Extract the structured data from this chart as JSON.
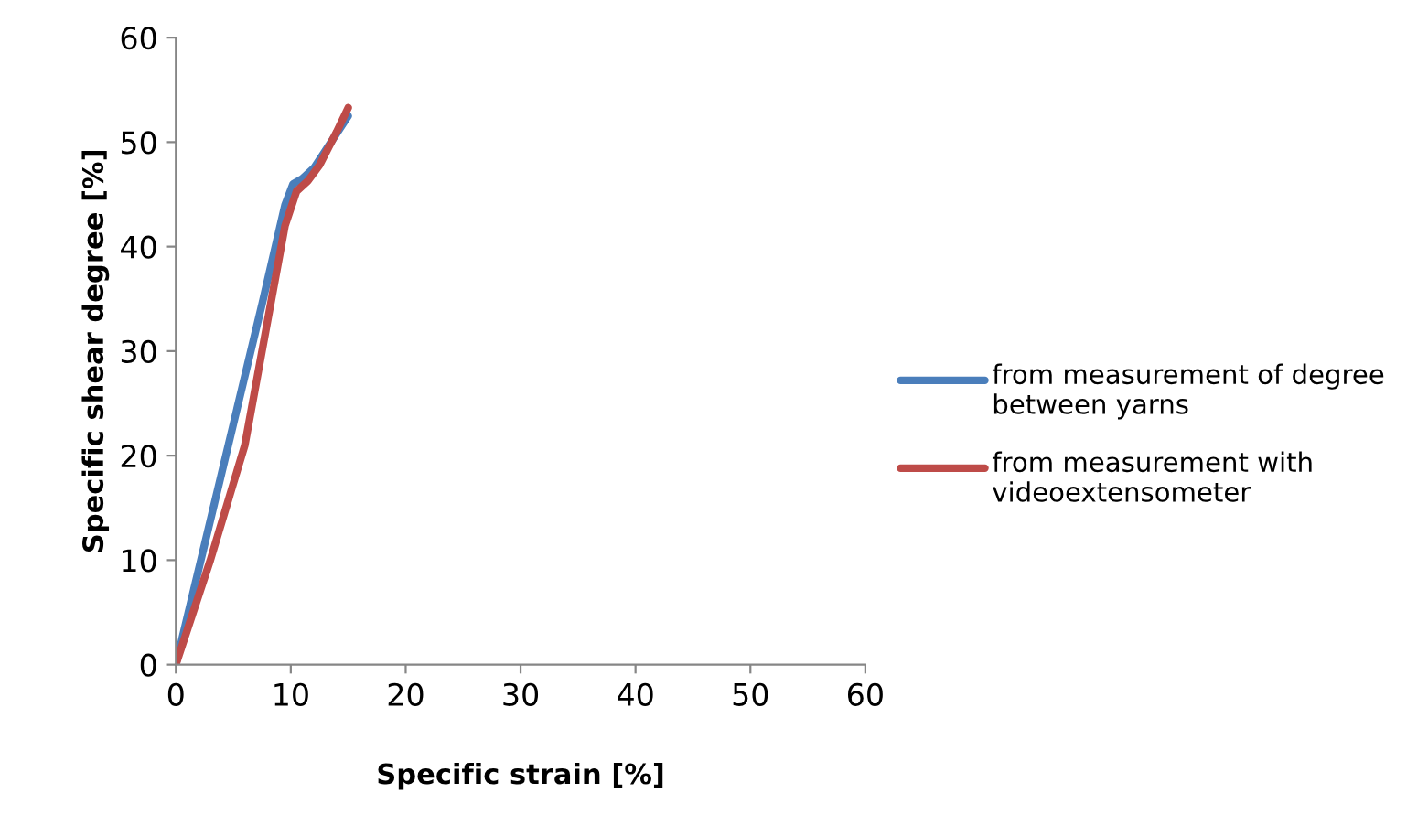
{
  "chart_data": {
    "type": "line",
    "xlabel": "Specific strain [%]",
    "ylabel": "Specific shear degree [%]",
    "xlim": [
      0,
      60
    ],
    "ylim": [
      0,
      60
    ],
    "xticks": [
      0,
      10,
      20,
      30,
      40,
      50,
      60
    ],
    "yticks": [
      0,
      10,
      20,
      30,
      40,
      50,
      60
    ],
    "grid": false,
    "legend": "right",
    "marker": "none",
    "line_style": "solid",
    "series": [
      {
        "name": "from measurement of degree between yarns",
        "color": "#4a7ebb",
        "x": [
          0,
          2.5,
          5,
          7.5,
          9.5,
          10.2,
          11,
          12,
          13.5,
          15
        ],
        "values": [
          0,
          11.5,
          23,
          34.5,
          44,
          46,
          46.5,
          47.5,
          50,
          52.5
        ]
      },
      {
        "name": "from measurement with videoextensometer",
        "color": "#be4b48",
        "x": [
          0,
          3,
          6,
          8,
          9.5,
          10.5,
          11.5,
          12.5,
          14,
          15
        ],
        "values": [
          0,
          10,
          21,
          33,
          42,
          45.3,
          46.3,
          47.8,
          51,
          53.3
        ]
      }
    ]
  }
}
